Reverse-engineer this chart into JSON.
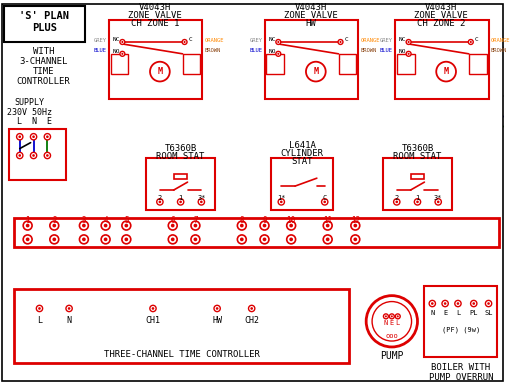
{
  "bg_color": "#ffffff",
  "red": "#dd0000",
  "blue": "#0000cc",
  "green": "#007700",
  "orange": "#ff8800",
  "brown": "#8B4513",
  "gray": "#888888",
  "black": "#000000",
  "dkgray": "#555555",
  "zone1_label": [
    "V4043H",
    "ZONE VALVE",
    "CH ZONE 1"
  ],
  "zone_hw_label": [
    "V4043H",
    "ZONE VALVE",
    "HW"
  ],
  "zone2_label": [
    "V4043H",
    "ZONE VALVE",
    "CH ZONE 2"
  ],
  "rs1_label": [
    "T6360B",
    "ROOM STAT"
  ],
  "cs_label": [
    "L641A",
    "CYLINDER",
    "STAT"
  ],
  "rs2_label": [
    "T6360B",
    "ROOM STAT"
  ],
  "tc_label": "THREE-CHANNEL TIME CONTROLLER",
  "pump_label": "PUMP",
  "boiler_label": [
    "BOILER WITH",
    "PUMP OVERRUN"
  ],
  "title_line1": "'S' PLAN",
  "title_line2": "PLUS",
  "subtitle": [
    "WITH",
    "3-CHANNEL",
    "TIME",
    "CONTROLLER"
  ],
  "supply_text": [
    "SUPPLY",
    "230V 50Hz",
    "L  N  E"
  ],
  "terminal_nums": [
    "1",
    "2",
    "3",
    "4",
    "5",
    "6",
    "7",
    "8",
    "9",
    "10",
    "11",
    "12"
  ],
  "ctrl_terminals": [
    "L",
    "N",
    "",
    "CH1",
    "",
    "HW",
    "CH2"
  ],
  "pump_terminals": [
    "N",
    "E",
    "L"
  ],
  "boiler_terminals": [
    "N",
    "E",
    "L",
    "PL",
    "SL"
  ],
  "boiler_sub": "(PF) (9w)"
}
